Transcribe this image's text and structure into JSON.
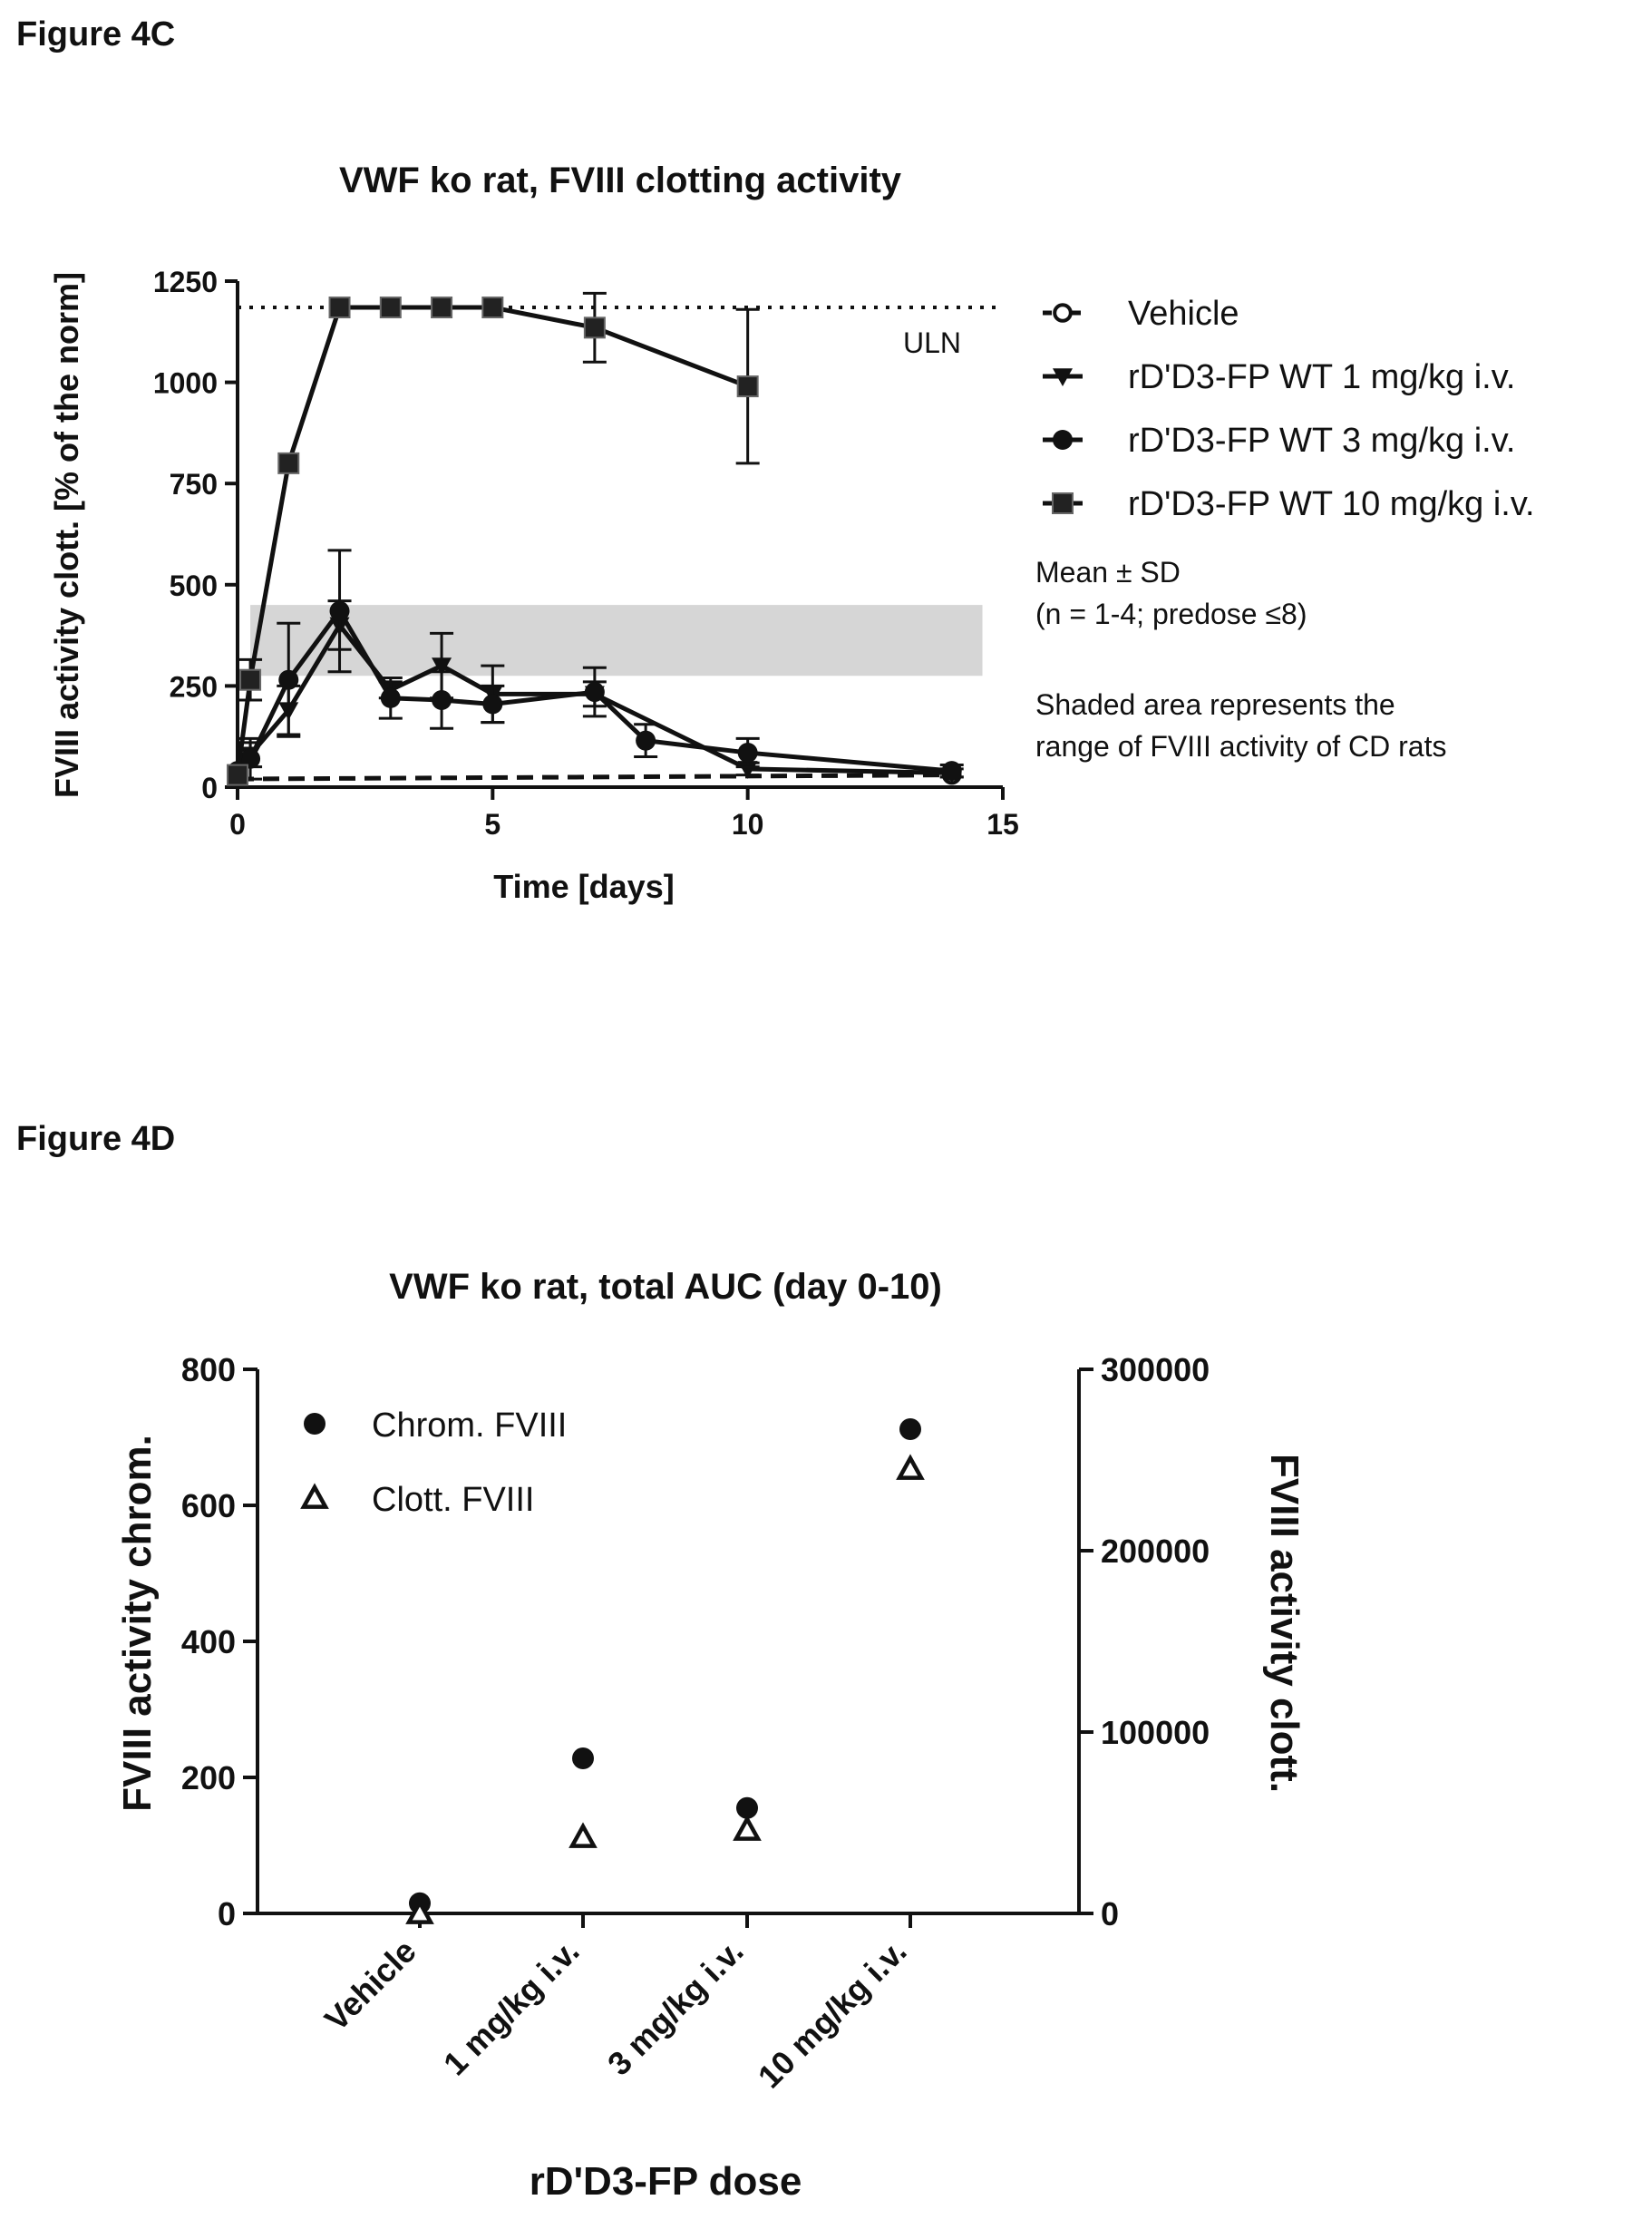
{
  "figures": {
    "c_label": "Figure 4C",
    "d_label": "Figure 4D"
  },
  "chart_data": [
    {
      "type": "line",
      "title": "VWF ko rat, FVIII clotting activity",
      "xlabel": "Time [days]",
      "ylabel": "FVIII activity clott. [% of the norm]",
      "xlim": [
        0,
        15
      ],
      "ylim": [
        0,
        1250
      ],
      "x_ticks": [
        "0",
        "5",
        "10",
        "15"
      ],
      "y_ticks": [
        "0",
        "250",
        "500",
        "750",
        "1000",
        "1250"
      ],
      "reference_line": {
        "label": "ULN",
        "y": 1185
      },
      "shaded_band": {
        "y_range": [
          275,
          450
        ]
      },
      "legend_position": "right",
      "notes": {
        "stat": "Mean ± SD",
        "n": "(n = 1-4; predose ≤8)",
        "shade1": "Shaded area represents the",
        "shade2": "range of FVIII activity of CD rats"
      },
      "series": [
        {
          "name": "Vehicle",
          "marker": "open-circle",
          "dash": "dashed",
          "x": [
            0,
            14
          ],
          "y": [
            20,
            30
          ],
          "err": [
            0,
            0
          ]
        },
        {
          "name": "rD'D3-FP WT 1 mg/kg i.v.",
          "marker": "triangle-down",
          "dash": "solid",
          "x": [
            0,
            0.25,
            1,
            2,
            3,
            4,
            5,
            7,
            10,
            14
          ],
          "y": [
            15,
            80,
            190,
            400,
            240,
            300,
            230,
            230,
            45,
            35
          ],
          "err": [
            0,
            30,
            60,
            60,
            20,
            80,
            70,
            30,
            15,
            10
          ]
        },
        {
          "name": "rD'D3-FP WT 3 mg/kg i.v.",
          "marker": "circle",
          "dash": "solid",
          "x": [
            0,
            0.25,
            1,
            2,
            3,
            4,
            5,
            7,
            8,
            10,
            14
          ],
          "y": [
            40,
            70,
            265,
            435,
            220,
            215,
            205,
            235,
            115,
            85,
            40
          ],
          "err": [
            0,
            50,
            140,
            150,
            50,
            70,
            45,
            60,
            40,
            35,
            15
          ]
        },
        {
          "name": "rD'D3-FP WT 10 mg/kg i.v.",
          "marker": "square",
          "dash": "solid",
          "x": [
            0,
            0.25,
            1,
            2,
            3,
            4,
            5,
            7,
            10
          ],
          "y": [
            30,
            265,
            800,
            1185,
            1185,
            1185,
            1185,
            1135,
            990
          ],
          "err": [
            0,
            50,
            0,
            0,
            0,
            0,
            0,
            85,
            190
          ]
        }
      ]
    },
    {
      "type": "scatter",
      "title": "VWF ko rat, total AUC (day 0-10)",
      "xlabel": "rD'D3-FP dose",
      "ylabel": "FVIII activity chrom.",
      "ylabel_right": "FVIII activity clott.",
      "categories": [
        "Vehicle",
        "1 mg/kg i.v.",
        "3 mg/kg i.v.",
        "10 mg/kg i.v."
      ],
      "ylim": [
        0,
        800
      ],
      "ylim_right": [
        0,
        300000
      ],
      "y_ticks": [
        "0",
        "200",
        "400",
        "600",
        "800"
      ],
      "y_ticks_right": [
        "0",
        "100000",
        "200000",
        "300000"
      ],
      "legend_position": "top-left",
      "series": [
        {
          "name": "Chrom. FVIII",
          "marker": "circle",
          "axis": "left",
          "values": [
            15,
            228,
            155,
            712
          ]
        },
        {
          "name": "Clott. FVIII",
          "marker": "open-triangle",
          "axis": "right",
          "values": [
            0,
            42000,
            46000,
            245000
          ]
        }
      ]
    }
  ]
}
